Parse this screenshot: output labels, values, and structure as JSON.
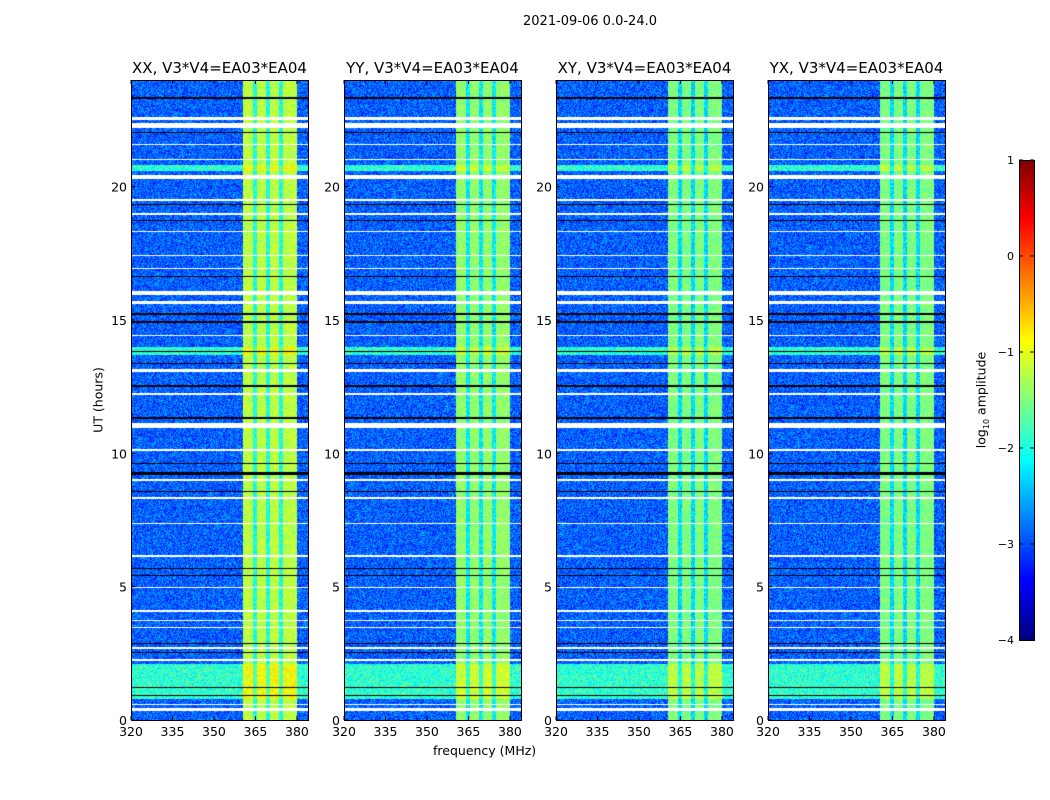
{
  "chart_data": {
    "type": "heatmap",
    "title": "2021-09-06 0.0-24.0",
    "xlabel": "frequency (MHz)",
    "ylabel": "UT (hours)",
    "xlim": [
      320,
      384
    ],
    "ylim": [
      0,
      24
    ],
    "xticks": [
      320,
      335,
      350,
      365,
      380
    ],
    "yticks": [
      0,
      5,
      10,
      15,
      20
    ],
    "panels": [
      {
        "title": "XX, V3*V4=EA03*EA04",
        "band_level": -1.2
      },
      {
        "title": "YY, V3*V4=EA03*EA04",
        "band_level": -1.4
      },
      {
        "title": "XY, V3*V4=EA03*EA04",
        "band_level": -1.5
      },
      {
        "title": "YX, V3*V4=EA03*EA04",
        "band_level": -1.5
      }
    ],
    "band_mhz": [
      360.5,
      380
    ],
    "band_gaps_mhz": [
      364.8,
      369.5,
      374.2
    ],
    "background_level": -2.9,
    "elevated_hours": [
      [
        0.8,
        2.1
      ],
      [
        13.7,
        14.0
      ],
      [
        20.6,
        20.8
      ]
    ],
    "flagged_white_hours": [
      [
        0.35,
        0.45
      ],
      [
        0.55,
        0.6
      ],
      [
        2.2,
        2.3
      ],
      [
        2.65,
        2.75
      ],
      [
        3.45,
        3.5
      ],
      [
        3.7,
        3.75
      ],
      [
        4.05,
        4.12
      ],
      [
        4.95,
        5.0
      ],
      [
        6.1,
        6.2
      ],
      [
        7.35,
        7.4
      ],
      [
        8.3,
        8.35
      ],
      [
        8.95,
        9.05
      ],
      [
        10.1,
        10.15
      ],
      [
        10.95,
        11.15
      ],
      [
        12.2,
        12.25
      ],
      [
        13.05,
        13.15
      ],
      [
        14.4,
        14.45
      ],
      [
        15.6,
        15.7
      ],
      [
        15.95,
        16.1
      ],
      [
        16.9,
        16.95
      ],
      [
        17.4,
        17.45
      ],
      [
        18.3,
        18.35
      ],
      [
        18.95,
        19.0
      ],
      [
        19.45,
        19.55
      ],
      [
        20.3,
        20.45
      ],
      [
        21.0,
        21.05
      ],
      [
        21.55,
        21.6
      ],
      [
        22.2,
        22.4
      ],
      [
        22.5,
        22.6
      ]
    ],
    "flagged_black_hours": [
      [
        0.9,
        0.95
      ],
      [
        1.2,
        1.25
      ],
      [
        2.5,
        2.55
      ],
      [
        2.85,
        2.9
      ],
      [
        5.4,
        5.45
      ],
      [
        5.65,
        5.7
      ],
      [
        8.55,
        8.6
      ],
      [
        9.2,
        9.3
      ],
      [
        9.6,
        9.65
      ],
      [
        11.3,
        11.35
      ],
      [
        12.5,
        12.55
      ],
      [
        13.35,
        13.4
      ],
      [
        13.8,
        13.85
      ],
      [
        14.9,
        14.95
      ],
      [
        15.2,
        15.25
      ],
      [
        16.6,
        16.65
      ],
      [
        18.7,
        18.75
      ],
      [
        19.3,
        19.35
      ],
      [
        22.0,
        22.05
      ],
      [
        23.3,
        23.35
      ]
    ],
    "colorbar": {
      "label": "log10 amplitude",
      "label_main": "log",
      "label_sub": "10",
      "label_rest": " amplitude",
      "range": [
        -4,
        1
      ],
      "ticks": [
        "1",
        "0",
        "−1",
        "−2",
        "−3",
        "−4"
      ],
      "colormap": "jet"
    }
  }
}
